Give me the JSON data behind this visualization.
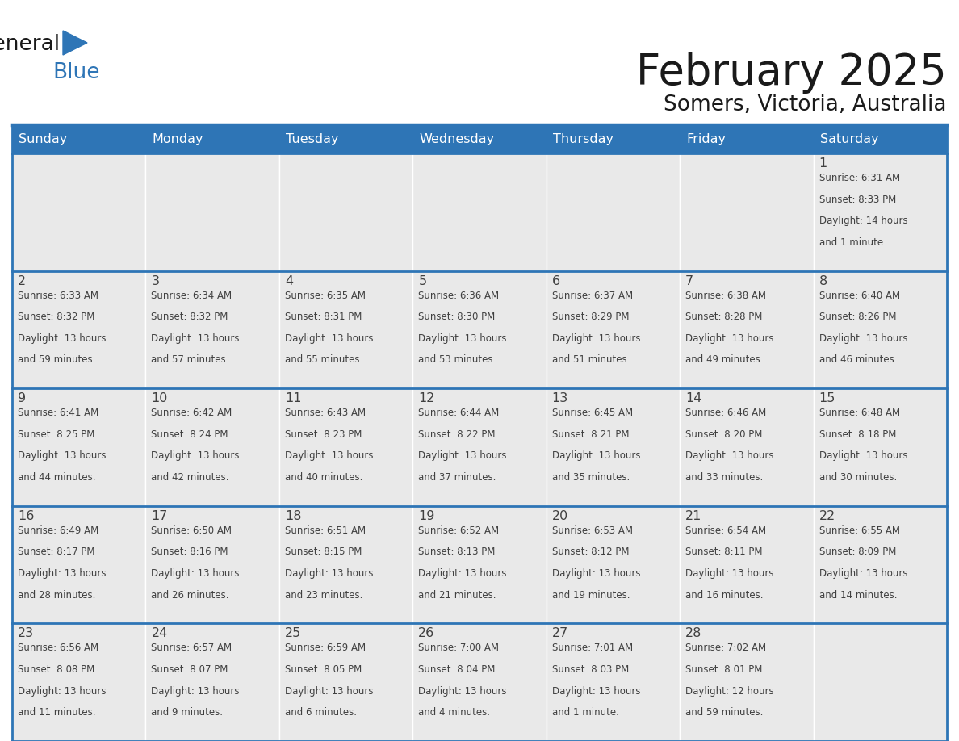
{
  "title": "February 2025",
  "subtitle": "Somers, Victoria, Australia",
  "days_of_week": [
    "Sunday",
    "Monday",
    "Tuesday",
    "Wednesday",
    "Thursday",
    "Friday",
    "Saturday"
  ],
  "header_bg": "#2E75B6",
  "header_text": "#FFFFFF",
  "cell_bg_gray": "#E9E9E9",
  "cell_bg_white": "#FFFFFF",
  "border_color": "#2E75B6",
  "day_num_color": "#404040",
  "text_color": "#404040",
  "title_color": "#1a1a1a",
  "logo_general_color": "#1a1a1a",
  "logo_blue_color": "#2E75B6",
  "weeks": [
    [
      {
        "day": null,
        "info": null
      },
      {
        "day": null,
        "info": null
      },
      {
        "day": null,
        "info": null
      },
      {
        "day": null,
        "info": null
      },
      {
        "day": null,
        "info": null
      },
      {
        "day": null,
        "info": null
      },
      {
        "day": 1,
        "info": "Sunrise: 6:31 AM\nSunset: 8:33 PM\nDaylight: 14 hours\nand 1 minute."
      }
    ],
    [
      {
        "day": 2,
        "info": "Sunrise: 6:33 AM\nSunset: 8:32 PM\nDaylight: 13 hours\nand 59 minutes."
      },
      {
        "day": 3,
        "info": "Sunrise: 6:34 AM\nSunset: 8:32 PM\nDaylight: 13 hours\nand 57 minutes."
      },
      {
        "day": 4,
        "info": "Sunrise: 6:35 AM\nSunset: 8:31 PM\nDaylight: 13 hours\nand 55 minutes."
      },
      {
        "day": 5,
        "info": "Sunrise: 6:36 AM\nSunset: 8:30 PM\nDaylight: 13 hours\nand 53 minutes."
      },
      {
        "day": 6,
        "info": "Sunrise: 6:37 AM\nSunset: 8:29 PM\nDaylight: 13 hours\nand 51 minutes."
      },
      {
        "day": 7,
        "info": "Sunrise: 6:38 AM\nSunset: 8:28 PM\nDaylight: 13 hours\nand 49 minutes."
      },
      {
        "day": 8,
        "info": "Sunrise: 6:40 AM\nSunset: 8:26 PM\nDaylight: 13 hours\nand 46 minutes."
      }
    ],
    [
      {
        "day": 9,
        "info": "Sunrise: 6:41 AM\nSunset: 8:25 PM\nDaylight: 13 hours\nand 44 minutes."
      },
      {
        "day": 10,
        "info": "Sunrise: 6:42 AM\nSunset: 8:24 PM\nDaylight: 13 hours\nand 42 minutes."
      },
      {
        "day": 11,
        "info": "Sunrise: 6:43 AM\nSunset: 8:23 PM\nDaylight: 13 hours\nand 40 minutes."
      },
      {
        "day": 12,
        "info": "Sunrise: 6:44 AM\nSunset: 8:22 PM\nDaylight: 13 hours\nand 37 minutes."
      },
      {
        "day": 13,
        "info": "Sunrise: 6:45 AM\nSunset: 8:21 PM\nDaylight: 13 hours\nand 35 minutes."
      },
      {
        "day": 14,
        "info": "Sunrise: 6:46 AM\nSunset: 8:20 PM\nDaylight: 13 hours\nand 33 minutes."
      },
      {
        "day": 15,
        "info": "Sunrise: 6:48 AM\nSunset: 8:18 PM\nDaylight: 13 hours\nand 30 minutes."
      }
    ],
    [
      {
        "day": 16,
        "info": "Sunrise: 6:49 AM\nSunset: 8:17 PM\nDaylight: 13 hours\nand 28 minutes."
      },
      {
        "day": 17,
        "info": "Sunrise: 6:50 AM\nSunset: 8:16 PM\nDaylight: 13 hours\nand 26 minutes."
      },
      {
        "day": 18,
        "info": "Sunrise: 6:51 AM\nSunset: 8:15 PM\nDaylight: 13 hours\nand 23 minutes."
      },
      {
        "day": 19,
        "info": "Sunrise: 6:52 AM\nSunset: 8:13 PM\nDaylight: 13 hours\nand 21 minutes."
      },
      {
        "day": 20,
        "info": "Sunrise: 6:53 AM\nSunset: 8:12 PM\nDaylight: 13 hours\nand 19 minutes."
      },
      {
        "day": 21,
        "info": "Sunrise: 6:54 AM\nSunset: 8:11 PM\nDaylight: 13 hours\nand 16 minutes."
      },
      {
        "day": 22,
        "info": "Sunrise: 6:55 AM\nSunset: 8:09 PM\nDaylight: 13 hours\nand 14 minutes."
      }
    ],
    [
      {
        "day": 23,
        "info": "Sunrise: 6:56 AM\nSunset: 8:08 PM\nDaylight: 13 hours\nand 11 minutes."
      },
      {
        "day": 24,
        "info": "Sunrise: 6:57 AM\nSunset: 8:07 PM\nDaylight: 13 hours\nand 9 minutes."
      },
      {
        "day": 25,
        "info": "Sunrise: 6:59 AM\nSunset: 8:05 PM\nDaylight: 13 hours\nand 6 minutes."
      },
      {
        "day": 26,
        "info": "Sunrise: 7:00 AM\nSunset: 8:04 PM\nDaylight: 13 hours\nand 4 minutes."
      },
      {
        "day": 27,
        "info": "Sunrise: 7:01 AM\nSunset: 8:03 PM\nDaylight: 13 hours\nand 1 minute."
      },
      {
        "day": 28,
        "info": "Sunrise: 7:02 AM\nSunset: 8:01 PM\nDaylight: 12 hours\nand 59 minutes."
      },
      {
        "day": null,
        "info": null
      }
    ]
  ]
}
